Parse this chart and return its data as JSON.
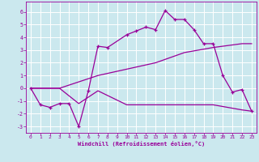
{
  "bg_color": "#cbe8ee",
  "grid_color": "#ffffff",
  "line_color": "#990099",
  "xlabel": "Windchill (Refroidissement éolien,°C)",
  "xlim": [
    -0.5,
    23.5
  ],
  "ylim": [
    -3.5,
    6.8
  ],
  "yticks": [
    -3,
    -2,
    -1,
    0,
    1,
    2,
    3,
    4,
    5,
    6
  ],
  "xticks": [
    0,
    1,
    2,
    3,
    4,
    5,
    6,
    7,
    8,
    9,
    10,
    11,
    12,
    13,
    14,
    15,
    16,
    17,
    18,
    19,
    20,
    21,
    22,
    23
  ],
  "series1_x": [
    0,
    1,
    2,
    3,
    4,
    5,
    6,
    7,
    8,
    10,
    11,
    12,
    13,
    14,
    15,
    16,
    17,
    18,
    19,
    20,
    21,
    22,
    23
  ],
  "series1_y": [
    0,
    -1.3,
    -1.5,
    -1.2,
    -1.2,
    -3.0,
    -0.2,
    3.3,
    3.2,
    4.2,
    4.5,
    4.8,
    4.6,
    6.1,
    5.4,
    5.4,
    4.6,
    3.5,
    3.5,
    1.0,
    -0.3,
    -0.1,
    -1.8
  ],
  "series2_x": [
    0,
    3,
    7,
    10,
    13,
    16,
    19,
    22,
    23
  ],
  "series2_y": [
    0,
    0.0,
    1.0,
    1.5,
    2.0,
    2.8,
    3.2,
    3.5,
    3.5
  ],
  "series3_x": [
    0,
    3,
    5,
    7,
    10,
    13,
    16,
    19,
    22,
    23
  ],
  "series3_y": [
    0,
    0.0,
    -1.2,
    -0.2,
    -1.3,
    -1.3,
    -1.3,
    -1.3,
    -1.7,
    -1.8
  ],
  "xlabel_fontsize": 5.0,
  "tick_fontsize": 4.5,
  "linewidth": 0.9,
  "markersize": 2.8
}
